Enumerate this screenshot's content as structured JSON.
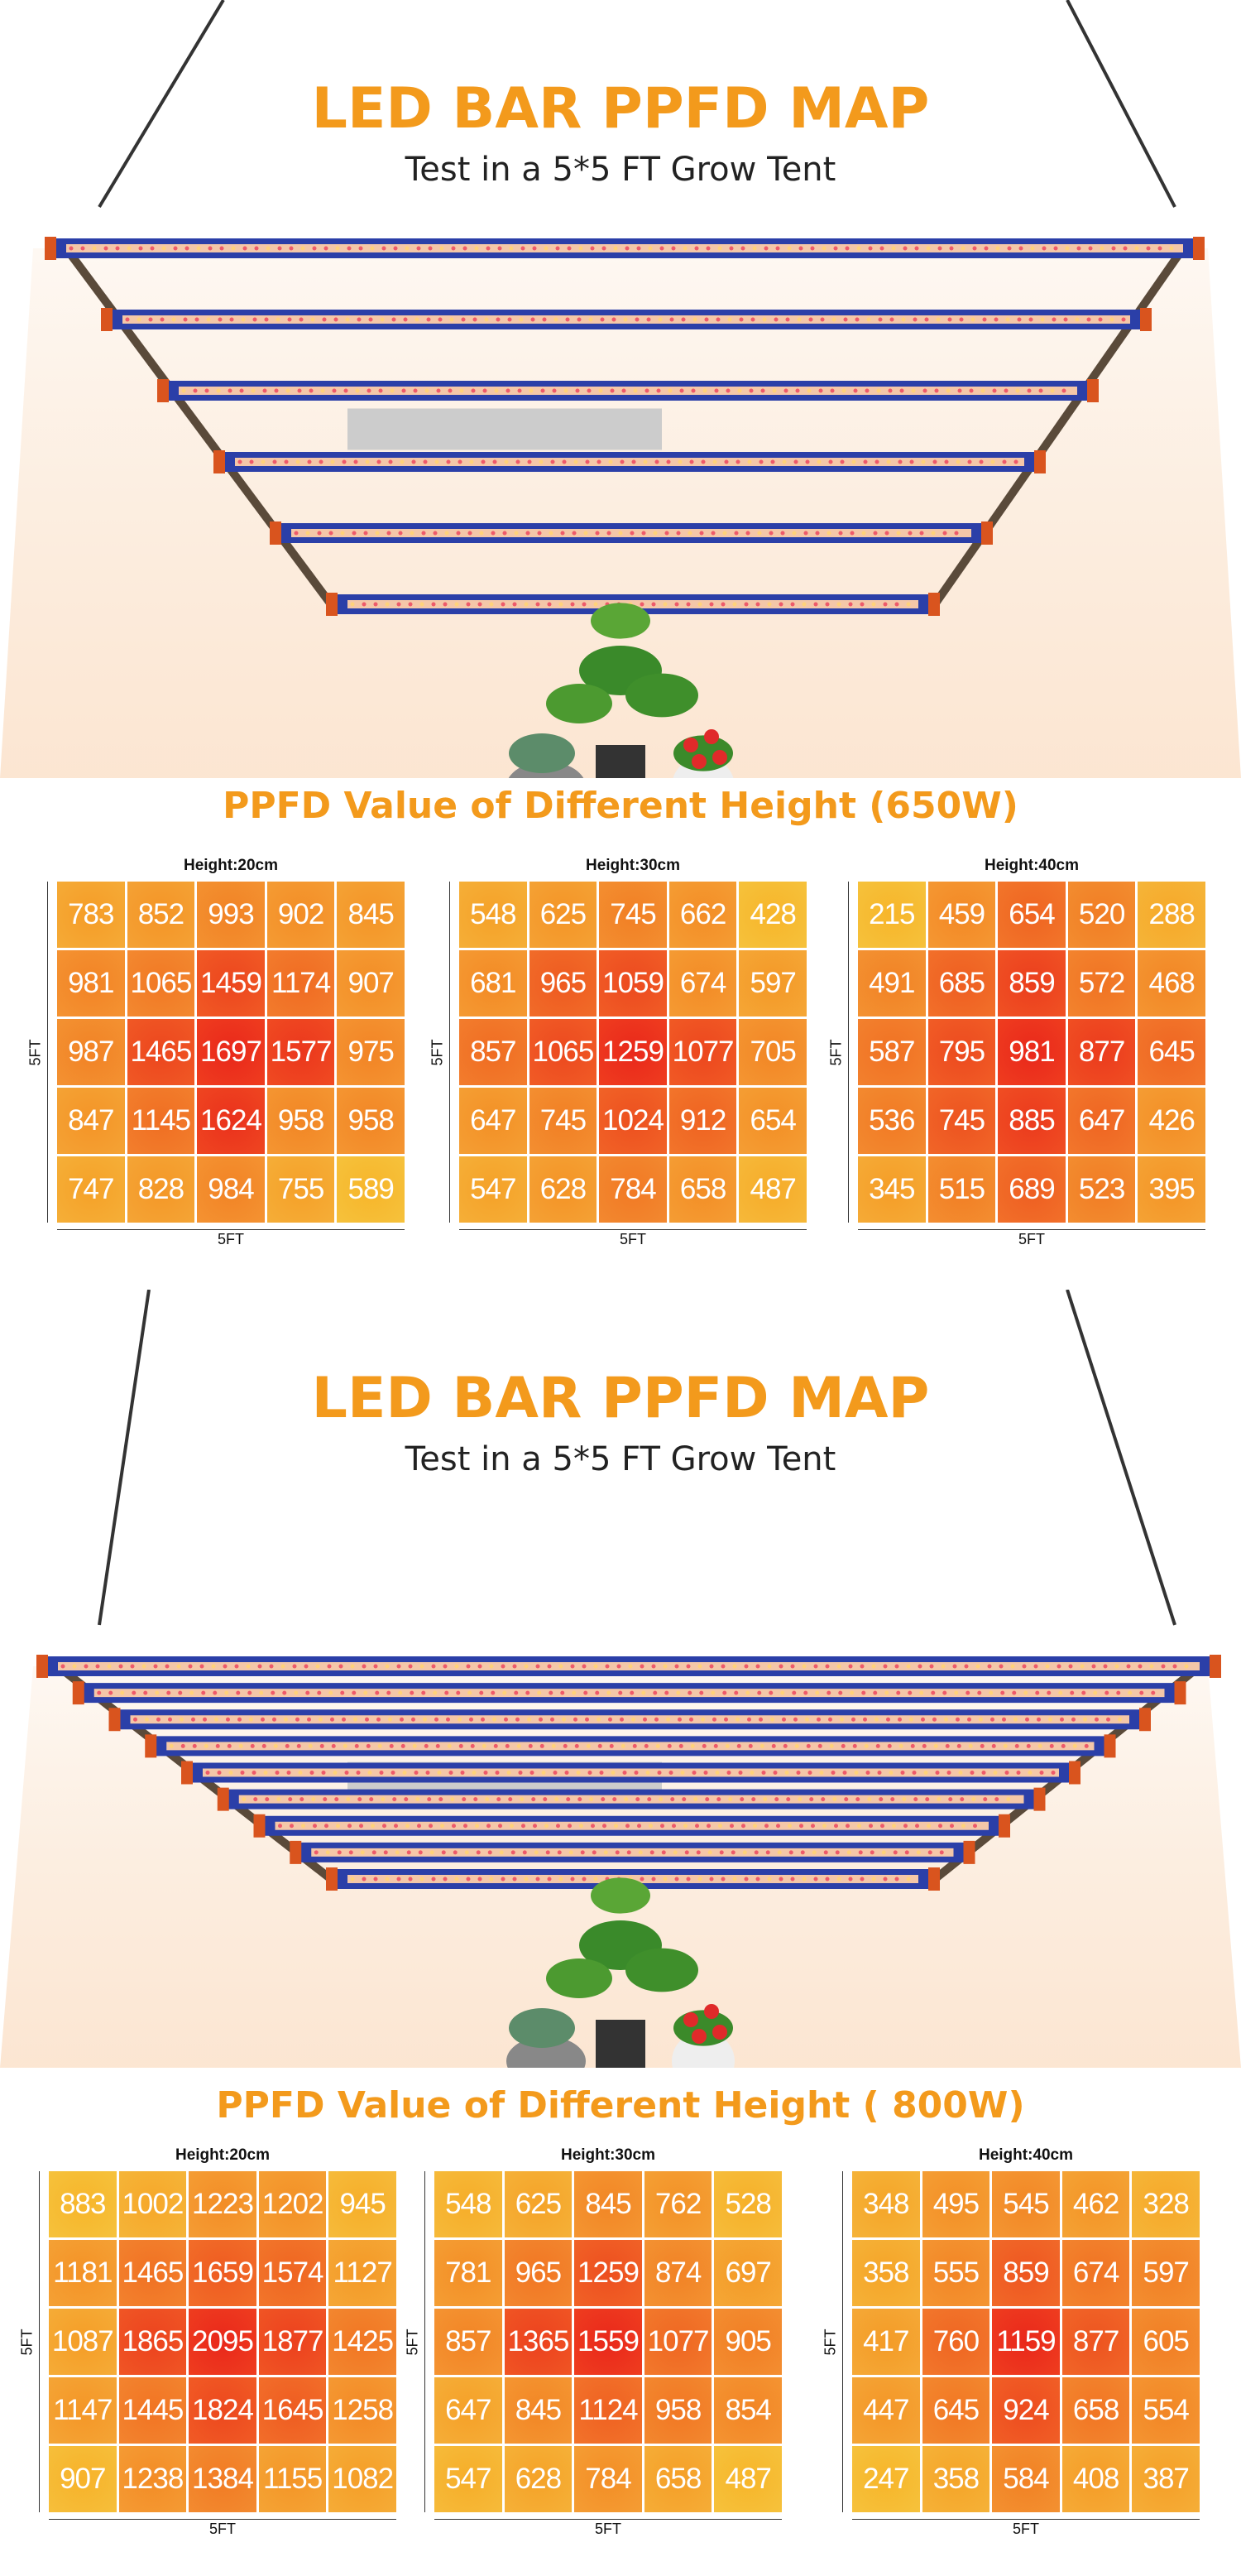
{
  "sections": [
    {
      "title": "LED BAR PPFD MAP",
      "subtitle": "Test in a 5*5 FT Grow Tent",
      "heading": "PPFD Value of Different Height (650W)",
      "grids": [
        {
          "label": "Height:20cm",
          "side": "5FT",
          "bottom": "5FT",
          "rows": [
            [
              783,
              852,
              993,
              902,
              845
            ],
            [
              981,
              1065,
              1459,
              1174,
              907
            ],
            [
              987,
              1465,
              1697,
              1577,
              975
            ],
            [
              847,
              1145,
              1624,
              958,
              958
            ],
            [
              747,
              828,
              984,
              755,
              589
            ]
          ]
        },
        {
          "label": "Height:30cm",
          "side": "5FT",
          "bottom": "5FT",
          "rows": [
            [
              548,
              625,
              745,
              662,
              428
            ],
            [
              681,
              965,
              1059,
              674,
              597
            ],
            [
              857,
              1065,
              1259,
              1077,
              705
            ],
            [
              647,
              745,
              1024,
              912,
              654
            ],
            [
              547,
              628,
              784,
              658,
              487
            ]
          ]
        },
        {
          "label": "Height:40cm",
          "side": "5FT",
          "bottom": "5FT",
          "rows": [
            [
              215,
              459,
              654,
              520,
              288
            ],
            [
              491,
              685,
              859,
              572,
              468
            ],
            [
              587,
              795,
              981,
              877,
              645
            ],
            [
              536,
              745,
              885,
              647,
              426
            ],
            [
              345,
              515,
              689,
              523,
              395
            ]
          ]
        }
      ]
    },
    {
      "title": "LED BAR PPFD MAP",
      "subtitle": "Test in a 5*5 FT Grow Tent",
      "heading": "PPFD Value of Different Height ( 800W)",
      "grids": [
        {
          "label": "Height:20cm",
          "side": "5FT",
          "bottom": "5FT",
          "rows": [
            [
              883,
              1002,
              1223,
              1202,
              945
            ],
            [
              1181,
              1465,
              1659,
              1574,
              1127
            ],
            [
              1087,
              1865,
              2095,
              1877,
              1425
            ],
            [
              1147,
              1445,
              1824,
              1645,
              1258
            ],
            [
              907,
              1238,
              1384,
              1155,
              1082
            ]
          ]
        },
        {
          "label": "Height:30cm",
          "side": "5FT",
          "bottom": "5FT",
          "rows": [
            [
              548,
              625,
              845,
              762,
              528
            ],
            [
              781,
              965,
              1259,
              874,
              697
            ],
            [
              857,
              1365,
              1559,
              1077,
              905
            ],
            [
              647,
              845,
              1124,
              958,
              854
            ],
            [
              547,
              628,
              784,
              658,
              487
            ]
          ]
        },
        {
          "label": "Height:40cm",
          "side": "5FT",
          "bottom": "5FT",
          "rows": [
            [
              348,
              495,
              545,
              462,
              328
            ],
            [
              358,
              555,
              859,
              674,
              597
            ],
            [
              417,
              760,
              1159,
              877,
              605
            ],
            [
              447,
              645,
              924,
              658,
              554
            ],
            [
              247,
              358,
              584,
              408,
              387
            ]
          ]
        }
      ]
    }
  ]
}
